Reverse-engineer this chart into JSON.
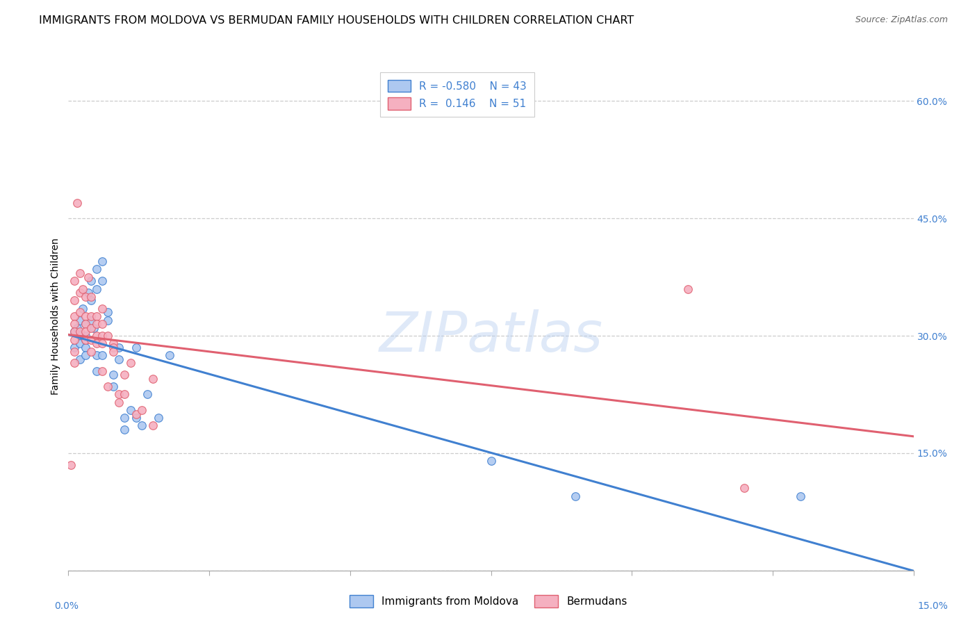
{
  "title": "IMMIGRANTS FROM MOLDOVA VS BERMUDAN FAMILY HOUSEHOLDS WITH CHILDREN CORRELATION CHART",
  "source": "Source: ZipAtlas.com",
  "ylabel": "Family Households with Children",
  "legend_label1": "Immigrants from Moldova",
  "legend_label2": "Bermudans",
  "R1": -0.58,
  "N1": 43,
  "R2": 0.146,
  "N2": 51,
  "color1": "#adc8f0",
  "color2": "#f5b0c0",
  "line_color1": "#4080d0",
  "line_color2": "#e06070",
  "xrange": [
    0.0,
    0.15
  ],
  "yrange": [
    0.0,
    0.65
  ],
  "yticks": [
    0.0,
    0.15,
    0.3,
    0.45,
    0.6
  ],
  "ytick_labels": [
    "",
    "15.0%",
    "30.0%",
    "45.0%",
    "60.0%"
  ],
  "xticks": [
    0.0,
    0.025,
    0.05,
    0.075,
    0.1,
    0.125,
    0.15
  ],
  "moldova_x": [
    0.001,
    0.001,
    0.0015,
    0.002,
    0.002,
    0.002,
    0.002,
    0.0025,
    0.003,
    0.003,
    0.003,
    0.003,
    0.003,
    0.0035,
    0.004,
    0.004,
    0.004,
    0.0045,
    0.005,
    0.005,
    0.005,
    0.005,
    0.006,
    0.006,
    0.006,
    0.007,
    0.007,
    0.008,
    0.008,
    0.009,
    0.009,
    0.01,
    0.01,
    0.011,
    0.012,
    0.012,
    0.013,
    0.014,
    0.016,
    0.018,
    0.075,
    0.09,
    0.13
  ],
  "moldova_y": [
    0.305,
    0.285,
    0.31,
    0.32,
    0.3,
    0.29,
    0.27,
    0.335,
    0.315,
    0.3,
    0.295,
    0.285,
    0.275,
    0.355,
    0.37,
    0.345,
    0.32,
    0.31,
    0.385,
    0.36,
    0.275,
    0.255,
    0.395,
    0.37,
    0.275,
    0.33,
    0.32,
    0.25,
    0.235,
    0.285,
    0.27,
    0.195,
    0.18,
    0.205,
    0.285,
    0.195,
    0.185,
    0.225,
    0.195,
    0.275,
    0.14,
    0.095,
    0.095
  ],
  "bermudan_x": [
    0.0005,
    0.001,
    0.001,
    0.001,
    0.001,
    0.001,
    0.001,
    0.001,
    0.001,
    0.0015,
    0.002,
    0.002,
    0.002,
    0.002,
    0.0025,
    0.003,
    0.003,
    0.003,
    0.003,
    0.003,
    0.0035,
    0.004,
    0.004,
    0.004,
    0.004,
    0.004,
    0.005,
    0.005,
    0.005,
    0.005,
    0.006,
    0.006,
    0.006,
    0.006,
    0.006,
    0.007,
    0.007,
    0.008,
    0.008,
    0.008,
    0.009,
    0.009,
    0.01,
    0.01,
    0.011,
    0.012,
    0.013,
    0.015,
    0.015,
    0.11,
    0.12
  ],
  "bermudan_y": [
    0.135,
    0.37,
    0.345,
    0.325,
    0.315,
    0.305,
    0.295,
    0.28,
    0.265,
    0.47,
    0.38,
    0.355,
    0.33,
    0.305,
    0.36,
    0.35,
    0.325,
    0.315,
    0.305,
    0.295,
    0.375,
    0.35,
    0.325,
    0.31,
    0.295,
    0.28,
    0.325,
    0.315,
    0.3,
    0.29,
    0.335,
    0.315,
    0.3,
    0.29,
    0.255,
    0.3,
    0.235,
    0.29,
    0.285,
    0.28,
    0.225,
    0.215,
    0.25,
    0.225,
    0.265,
    0.2,
    0.205,
    0.245,
    0.185,
    0.36,
    0.105
  ],
  "watermark": "ZIPatlas",
  "title_fontsize": 11.5,
  "source_fontsize": 9,
  "axis_label_fontsize": 10,
  "tick_fontsize": 10,
  "legend_fontsize": 11,
  "watermark_fontsize": 58
}
